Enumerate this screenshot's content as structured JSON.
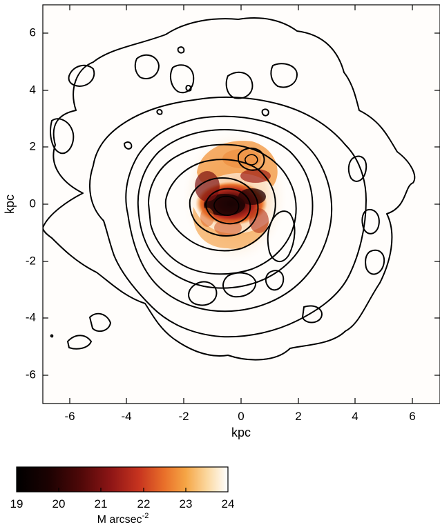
{
  "chart_data": {
    "type": "heatmap",
    "title": "",
    "xlabel": "kpc",
    "ylabel": "kpc",
    "xlim": [
      -7,
      7
    ],
    "ylim": [
      -7,
      7
    ],
    "xticks": [
      -6,
      -4,
      -2,
      0,
      2,
      4,
      6
    ],
    "yticks": [
      -6,
      -4,
      -2,
      0,
      2,
      4,
      6
    ],
    "xtick_labels": [
      "-6",
      "-4",
      "-2",
      "0",
      "2",
      "4",
      "6"
    ],
    "ytick_labels": [
      "-6",
      "-4",
      "-2",
      "0",
      "2",
      "4",
      "6"
    ],
    "grid": false,
    "image": {
      "description_values": "surface brightness map, brightest near center, roughly -1.5..1.5 kpc in x and -2..2 kpc in y",
      "peak_position_kpc": [
        -0.5,
        0
      ],
      "value_range": [
        19,
        24
      ]
    },
    "contours": {
      "levels_count": 8,
      "outer_extent_kpc": {
        "x": [
          -7,
          6
        ],
        "y": [
          -5.4,
          6.5
        ]
      }
    },
    "colorbar": {
      "label": "M arcsec",
      "label_superscript": "-2",
      "ticks": [
        "19",
        "20",
        "21",
        "22",
        "23",
        "24"
      ],
      "range": [
        19,
        24
      ],
      "colors": [
        "#000000",
        "#3a0505",
        "#8a1414",
        "#c8351f",
        "#ee7a2a",
        "#f7b04f",
        "#fde6c2",
        "#ffffff"
      ]
    }
  }
}
